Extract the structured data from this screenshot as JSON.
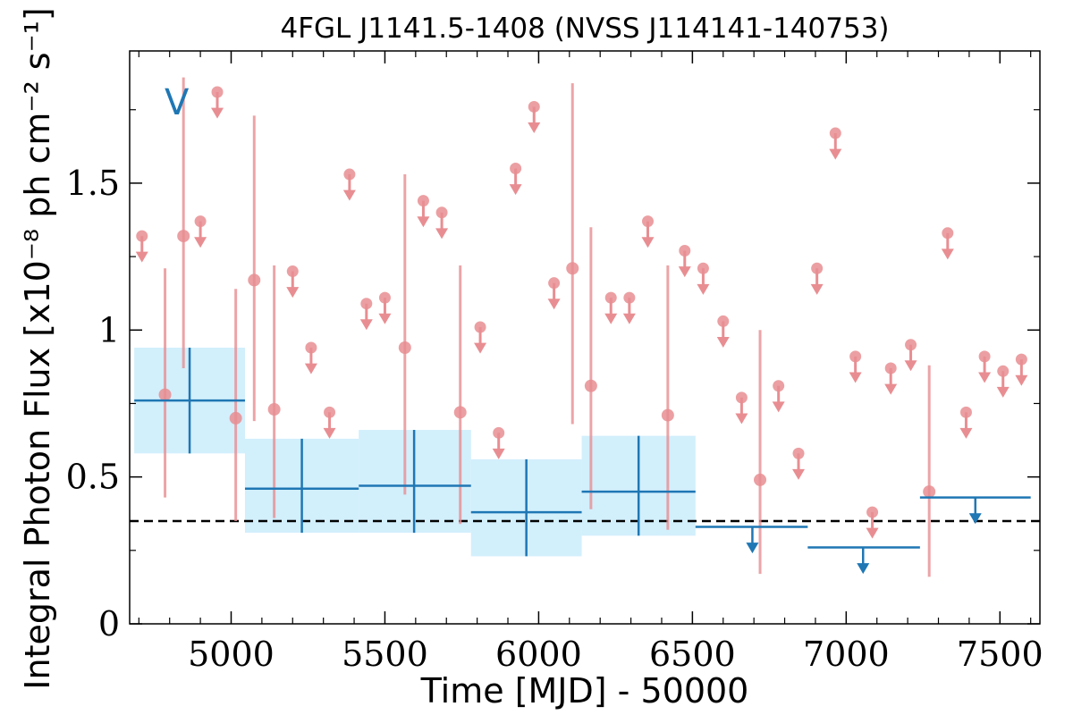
{
  "chart_data": {
    "type": "scatter",
    "title": "4FGL J1141.5-1408 (NVSS J114141-140753)",
    "xlabel": "Time [MJD] - 50000",
    "ylabel": "Integral Photon Flux [x10⁻⁸ ph cm⁻² s⁻¹]",
    "band_label": "V",
    "xlim": [
      4670,
      7630
    ],
    "ylim": [
      0,
      1.95
    ],
    "xticks": [
      5000,
      5500,
      6000,
      6500,
      7000,
      7500
    ],
    "yticks": [
      0,
      0.5,
      1,
      1.5
    ],
    "ytick_labels": [
      "0",
      "0.5",
      "1",
      "1.5"
    ],
    "grid": false,
    "reference_line": {
      "y": 0.35,
      "style": "dashed"
    },
    "colors": {
      "fine_bins": "#e88e92",
      "coarse_bins": "#1f77b4",
      "coarse_band": "#d2effc",
      "reference": "#000000"
    },
    "series": [
      {
        "points": [
          {
            "x": 4785,
            "y": 0.78,
            "ylow": 0.43,
            "yhigh": 1.21
          },
          {
            "x": 4845,
            "y": 1.32,
            "ylow": 0.87,
            "yhigh": 1.86
          },
          {
            "x": 5015,
            "y": 0.7,
            "ylow": 0.35,
            "yhigh": 1.14
          },
          {
            "x": 5075,
            "y": 1.17,
            "ylow": 0.69,
            "yhigh": 1.73
          },
          {
            "x": 5140,
            "y": 0.73,
            "ylow": 0.36,
            "yhigh": 1.22
          },
          {
            "x": 5565,
            "y": 0.94,
            "ylow": 0.44,
            "yhigh": 1.53
          },
          {
            "x": 5745,
            "y": 0.72,
            "ylow": 0.34,
            "yhigh": 1.22
          },
          {
            "x": 6110,
            "y": 1.21,
            "ylow": 0.68,
            "yhigh": 1.84
          },
          {
            "x": 6170,
            "y": 0.81,
            "ylow": 0.39,
            "yhigh": 1.35
          },
          {
            "x": 6420,
            "y": 0.71,
            "ylow": 0.32,
            "yhigh": 1.22
          },
          {
            "x": 6720,
            "y": 0.49,
            "ylow": 0.17,
            "yhigh": 1.0
          },
          {
            "x": 7270,
            "y": 0.45,
            "ylow": 0.16,
            "yhigh": 0.88
          }
        ],
        "upper_limits": [
          {
            "x": 4710,
            "y": 1.32
          },
          {
            "x": 4900,
            "y": 1.37
          },
          {
            "x": 4955,
            "y": 1.81
          },
          {
            "x": 5200,
            "y": 1.2
          },
          {
            "x": 5260,
            "y": 0.94
          },
          {
            "x": 5320,
            "y": 0.72
          },
          {
            "x": 5385,
            "y": 1.53
          },
          {
            "x": 5440,
            "y": 1.09
          },
          {
            "x": 5500,
            "y": 1.11
          },
          {
            "x": 5625,
            "y": 1.44
          },
          {
            "x": 5685,
            "y": 1.4
          },
          {
            "x": 5810,
            "y": 1.01
          },
          {
            "x": 5870,
            "y": 0.65
          },
          {
            "x": 5925,
            "y": 1.55
          },
          {
            "x": 5985,
            "y": 1.76
          },
          {
            "x": 6050,
            "y": 1.16
          },
          {
            "x": 6235,
            "y": 1.11
          },
          {
            "x": 6295,
            "y": 1.11
          },
          {
            "x": 6355,
            "y": 1.37
          },
          {
            "x": 6475,
            "y": 1.27
          },
          {
            "x": 6535,
            "y": 1.21
          },
          {
            "x": 6600,
            "y": 1.03
          },
          {
            "x": 6660,
            "y": 0.77
          },
          {
            "x": 6780,
            "y": 0.81
          },
          {
            "x": 6845,
            "y": 0.58
          },
          {
            "x": 6905,
            "y": 1.21
          },
          {
            "x": 6965,
            "y": 1.67
          },
          {
            "x": 7030,
            "y": 0.91
          },
          {
            "x": 7085,
            "y": 0.38
          },
          {
            "x": 7145,
            "y": 0.87
          },
          {
            "x": 7210,
            "y": 0.95
          },
          {
            "x": 7330,
            "y": 1.33
          },
          {
            "x": 7390,
            "y": 0.72
          },
          {
            "x": 7450,
            "y": 0.91
          },
          {
            "x": 7510,
            "y": 0.86
          },
          {
            "x": 7570,
            "y": 0.9
          }
        ]
      },
      {
        "points": [
          {
            "x": 4865,
            "xlow": 4685,
            "xhigh": 5045,
            "y": 0.76,
            "ylow": 0.58,
            "yhigh": 0.94
          },
          {
            "x": 5230,
            "xlow": 5045,
            "xhigh": 5415,
            "y": 0.46,
            "ylow": 0.31,
            "yhigh": 0.63
          },
          {
            "x": 5595,
            "xlow": 5415,
            "xhigh": 5780,
            "y": 0.47,
            "ylow": 0.31,
            "yhigh": 0.66
          },
          {
            "x": 5960,
            "xlow": 5780,
            "xhigh": 6140,
            "y": 0.38,
            "ylow": 0.23,
            "yhigh": 0.56
          },
          {
            "x": 6325,
            "xlow": 6140,
            "xhigh": 6510,
            "y": 0.45,
            "ylow": 0.3,
            "yhigh": 0.64
          }
        ],
        "upper_limits": [
          {
            "x": 6695,
            "xlow": 6510,
            "xhigh": 6875,
            "y": 0.33
          },
          {
            "x": 7055,
            "xlow": 6875,
            "xhigh": 7240,
            "y": 0.26
          },
          {
            "x": 7420,
            "xlow": 7240,
            "xhigh": 7600,
            "y": 0.43
          }
        ]
      }
    ]
  }
}
